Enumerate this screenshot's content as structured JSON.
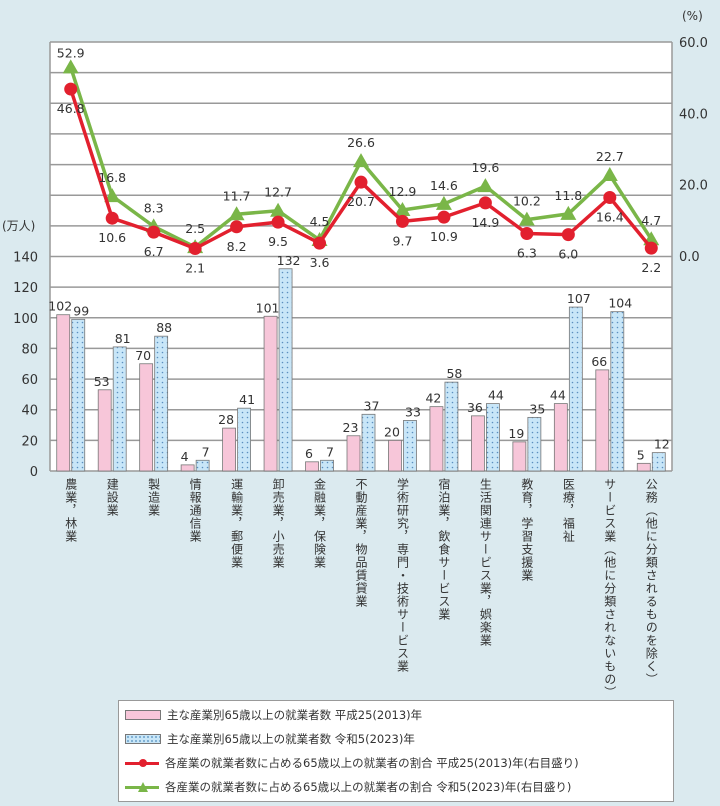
{
  "chart_data": {
    "type": "bar+line",
    "left_axis": {
      "unit_label": "(万人)",
      "ylim": [
        0,
        140
      ],
      "ticks": [
        0,
        20,
        40,
        60,
        80,
        100,
        120,
        140
      ]
    },
    "right_axis": {
      "unit_label": "(%)",
      "ylim": [
        0,
        60
      ],
      "ticks": [
        "0.0",
        "20.0",
        "40.0",
        "60.0"
      ]
    },
    "categories": [
      "農業，林業",
      "建設業",
      "製造業",
      "情報通信業",
      "運輸業，郵便業",
      "卸売業，小売業",
      "金融業，保険業",
      "不動産業，物品賃貸業",
      "学術研究，専門・技術サービス業",
      "宿泊業，飲食サービス業",
      "生活関連サービス業，娯楽業",
      "教育，学習支援業",
      "医療，福祉",
      "サービス業（他に分類されないもの）",
      "公務（他に分類されるものを除く）"
    ],
    "series": [
      {
        "name": "主な産業別65歳以上の就業者数 平成25(2013)年",
        "type": "bar",
        "axis": "left",
        "color": "#f7c6d9",
        "values": [
          102,
          53,
          70,
          4,
          28,
          101,
          6,
          23,
          20,
          42,
          36,
          19,
          44,
          66,
          5
        ]
      },
      {
        "name": "主な産業別65歳以上の就業者数 令和5(2023)年",
        "type": "bar",
        "axis": "left",
        "color": "#c8e6f8",
        "values": [
          99,
          81,
          88,
          7,
          41,
          132,
          7,
          37,
          33,
          58,
          44,
          35,
          107,
          104,
          12
        ]
      },
      {
        "name": "各産業の就業者数に占める65歳以上の就業者の割合 平成25(2013)年(右目盛り)",
        "type": "line",
        "axis": "right",
        "color": "#e2202e",
        "values": [
          46.8,
          10.6,
          6.7,
          2.1,
          8.2,
          9.5,
          3.6,
          20.7,
          9.7,
          10.9,
          14.9,
          6.3,
          6.0,
          16.4,
          2.2
        ]
      },
      {
        "name": "各産業の就業者数に占める65歳以上の就業者の割合 令和5(2023)年(右目盛り)",
        "type": "line",
        "axis": "right",
        "color": "#7ab648",
        "values": [
          52.9,
          16.8,
          8.3,
          2.5,
          11.7,
          12.7,
          4.5,
          26.6,
          12.9,
          14.6,
          19.6,
          10.2,
          11.8,
          22.7,
          4.7
        ]
      }
    ],
    "grid": true,
    "legend_placement": "bottom"
  }
}
